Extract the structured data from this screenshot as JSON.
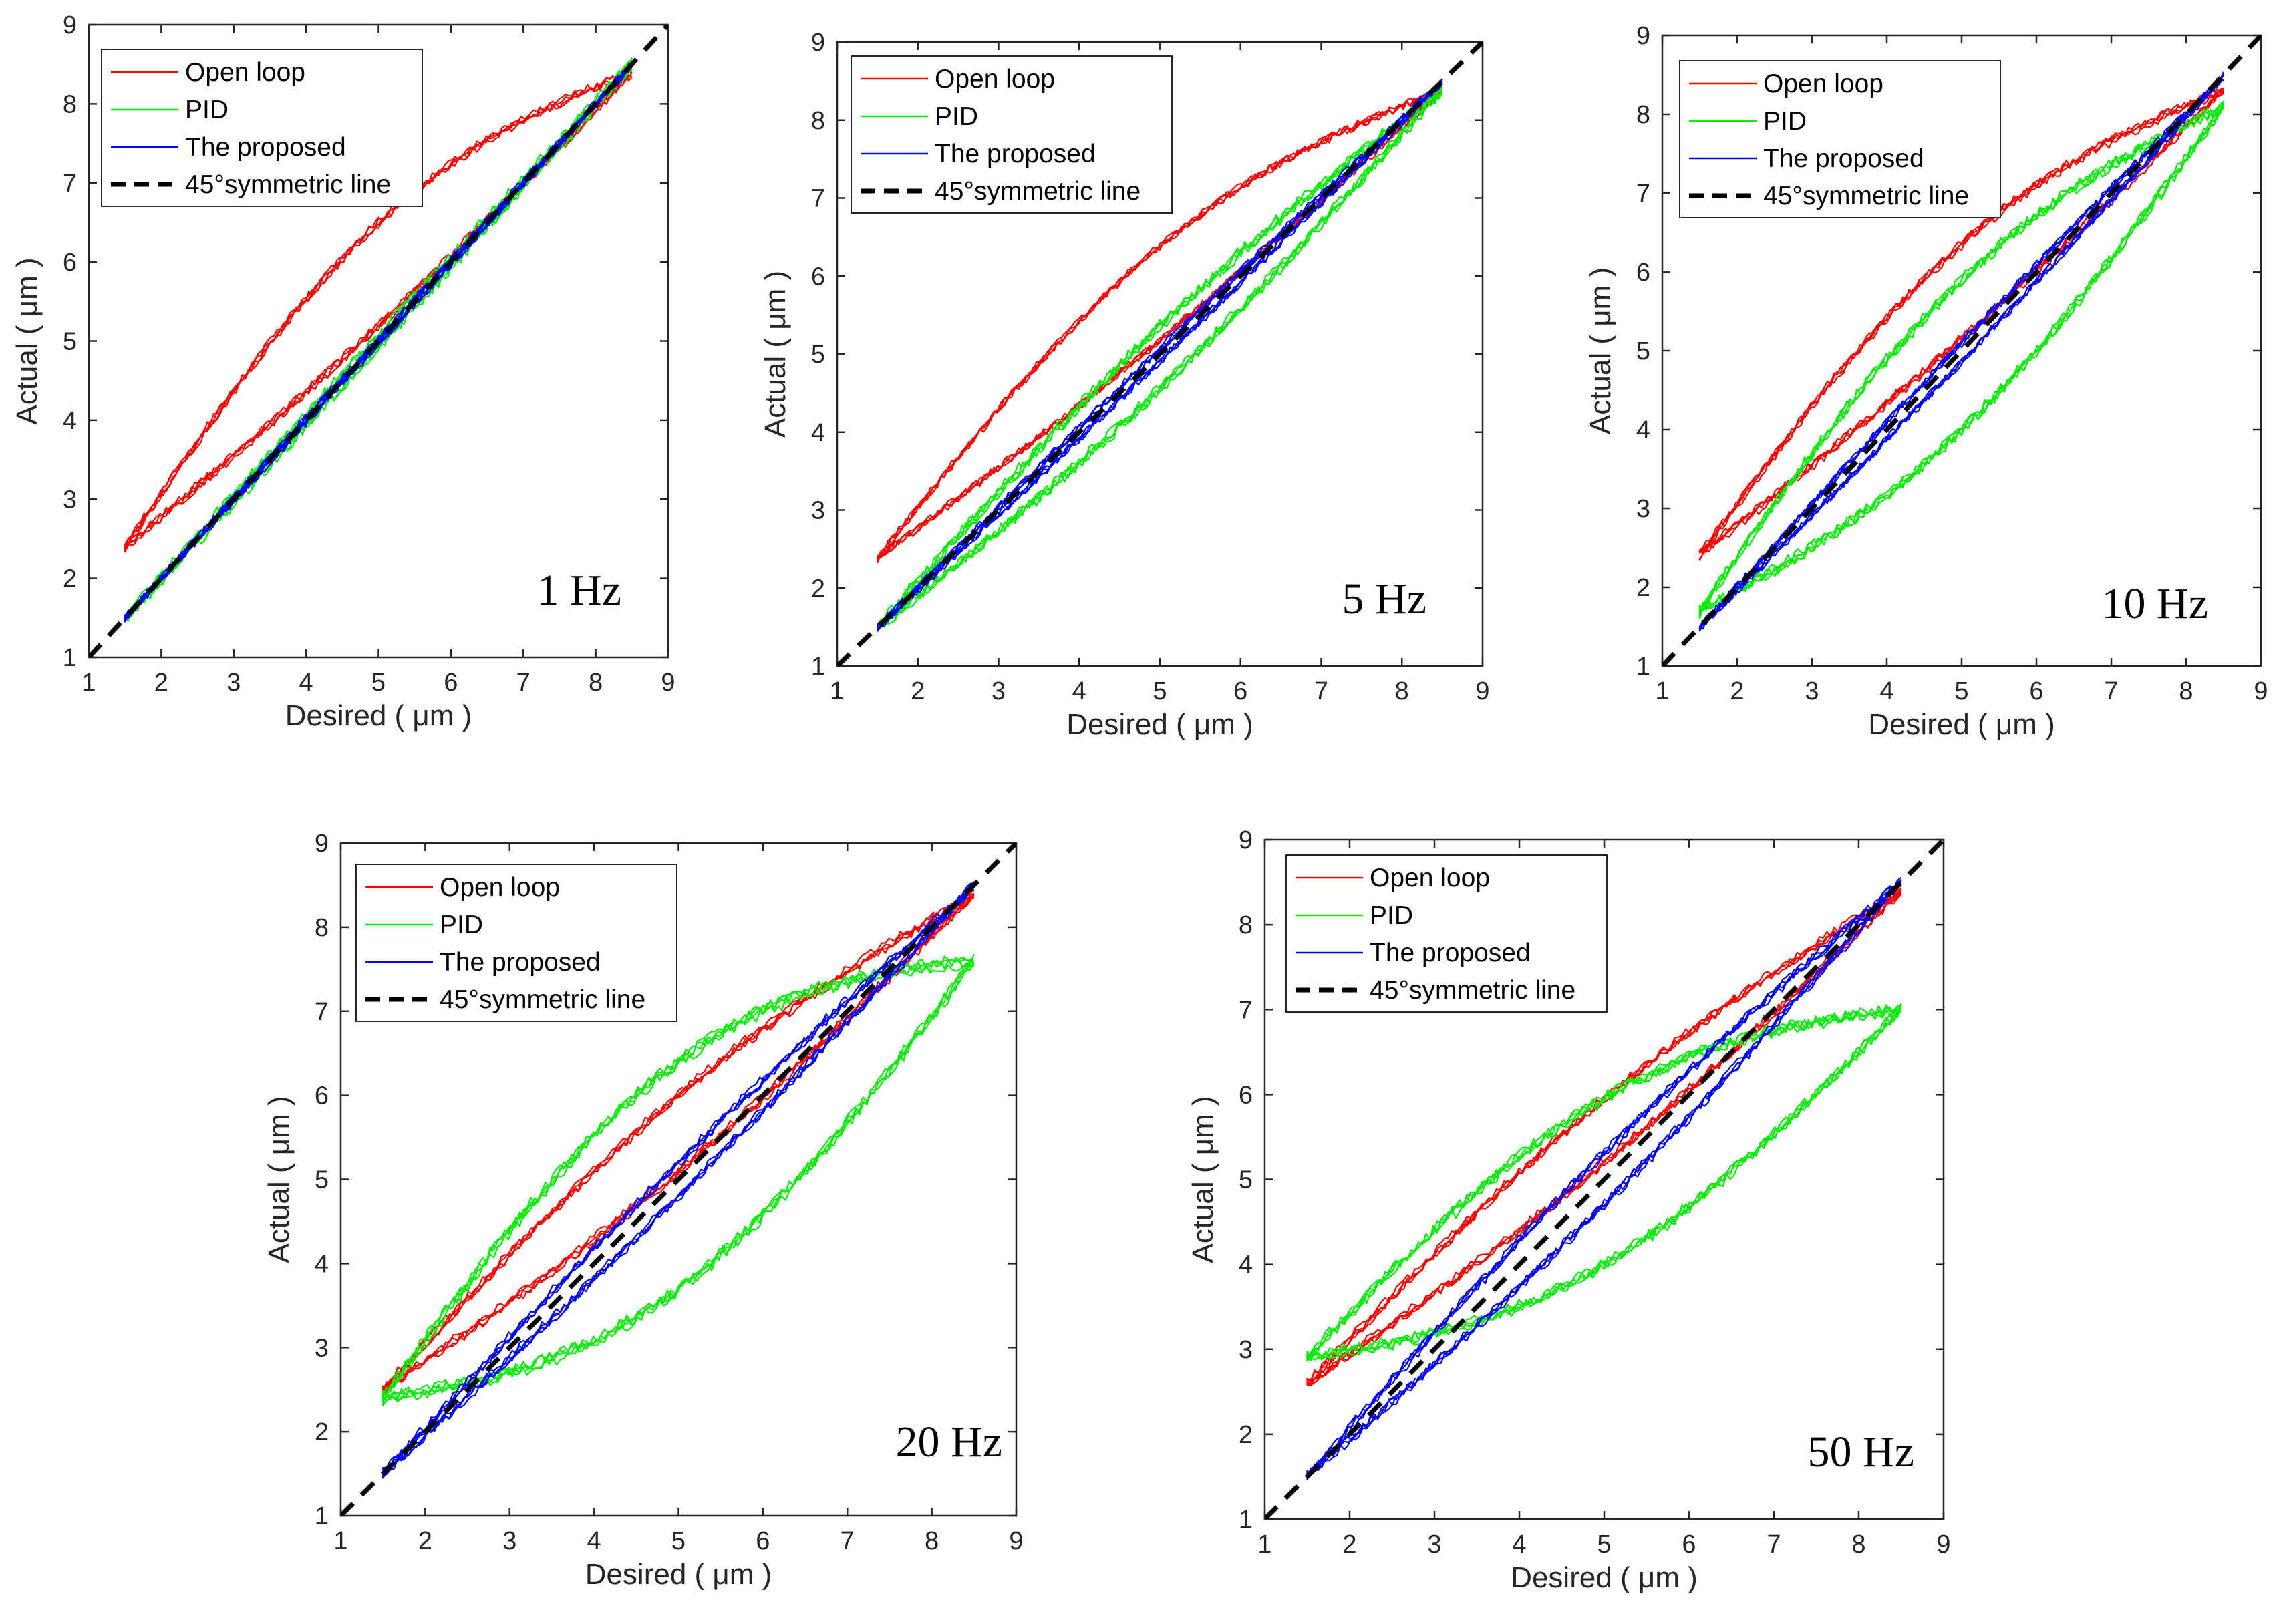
{
  "figure": {
    "colors": {
      "open_loop": "#ff0000",
      "pid": "#00ee00",
      "proposed": "#0000ff",
      "symmetric": "#000000",
      "axes": "#262626"
    }
  },
  "chart_data": [
    {
      "type": "line",
      "panel": "1 Hz",
      "annotation": "1 Hz",
      "xlabel": "Desired ( μm )",
      "ylabel": "Actual ( μm )",
      "xlim": [
        1,
        9
      ],
      "ylim": [
        1,
        9
      ],
      "xticks": [
        "1",
        "2",
        "3",
        "4",
        "5",
        "6",
        "7",
        "8",
        "9"
      ],
      "yticks": [
        "1",
        "2",
        "3",
        "4",
        "5",
        "6",
        "7",
        "8",
        "9"
      ],
      "legend_position": "top-left",
      "series": [
        {
          "name": "Open loop",
          "kind": "hysteresis",
          "x_range": [
            1.5,
            8.5
          ],
          "y_range": [
            2.4,
            8.4
          ],
          "upper_offset": 1.1,
          "lower_offset": 0.2
        },
        {
          "name": "PID",
          "kind": "hysteresis",
          "x_range": [
            1.5,
            8.5
          ],
          "y_range": [
            1.5,
            8.5
          ],
          "upper_offset": 0.06,
          "lower_offset": 0.06
        },
        {
          "name": "The proposed",
          "kind": "hysteresis",
          "x_range": [
            1.5,
            8.5
          ],
          "y_range": [
            1.5,
            8.5
          ],
          "upper_offset": 0.03,
          "lower_offset": 0.03
        },
        {
          "name": "45°symmetric line",
          "kind": "diagonal",
          "x": [
            1,
            9
          ],
          "y": [
            1,
            9
          ]
        }
      ]
    },
    {
      "type": "line",
      "panel": "5 Hz",
      "annotation": "5 Hz",
      "xlabel": "Desired ( μm )",
      "ylabel": "Actual ( μm )",
      "xlim": [
        1,
        9
      ],
      "ylim": [
        1,
        9
      ],
      "xticks": [
        "1",
        "2",
        "3",
        "4",
        "5",
        "6",
        "7",
        "8",
        "9"
      ],
      "yticks": [
        "1",
        "2",
        "3",
        "4",
        "5",
        "6",
        "7",
        "8",
        "9"
      ],
      "legend_position": "top-left",
      "series": [
        {
          "name": "Open loop",
          "kind": "hysteresis",
          "x_range": [
            1.5,
            8.5
          ],
          "y_range": [
            2.4,
            8.4
          ],
          "upper_offset": 1.0,
          "lower_offset": 0.2
        },
        {
          "name": "PID",
          "kind": "hysteresis",
          "x_range": [
            1.5,
            8.5
          ],
          "y_range": [
            1.5,
            8.4
          ],
          "upper_offset": 0.4,
          "lower_offset": 0.4
        },
        {
          "name": "The proposed",
          "kind": "hysteresis",
          "x_range": [
            1.5,
            8.5
          ],
          "y_range": [
            1.5,
            8.5
          ],
          "upper_offset": 0.08,
          "lower_offset": 0.08
        },
        {
          "name": "45°symmetric line",
          "kind": "diagonal",
          "x": [
            1,
            9
          ],
          "y": [
            1,
            9
          ]
        }
      ]
    },
    {
      "type": "line",
      "panel": "10 Hz",
      "annotation": "10 Hz",
      "xlabel": "Desired ( μm )",
      "ylabel": "Actual ( μm )",
      "xlim": [
        1,
        9
      ],
      "ylim": [
        1,
        9
      ],
      "xticks": [
        "1",
        "2",
        "3",
        "4",
        "5",
        "6",
        "7",
        "8",
        "9"
      ],
      "yticks": [
        "1",
        "2",
        "3",
        "4",
        "5",
        "6",
        "7",
        "8",
        "9"
      ],
      "legend_position": "top-left",
      "series": [
        {
          "name": "Open loop",
          "kind": "hysteresis",
          "x_range": [
            1.5,
            8.5
          ],
          "y_range": [
            2.4,
            8.3
          ],
          "upper_offset": 1.0,
          "lower_offset": 0.2
        },
        {
          "name": "PID",
          "kind": "hysteresis",
          "x_range": [
            1.5,
            8.5
          ],
          "y_range": [
            1.7,
            8.1
          ],
          "upper_offset": 1.0,
          "lower_offset": 0.9
        },
        {
          "name": "The proposed",
          "kind": "hysteresis",
          "x_range": [
            1.5,
            8.5
          ],
          "y_range": [
            1.5,
            8.5
          ],
          "upper_offset": 0.12,
          "lower_offset": 0.12
        },
        {
          "name": "45°symmetric line",
          "kind": "diagonal",
          "x": [
            1,
            9
          ],
          "y": [
            1,
            9
          ]
        }
      ]
    },
    {
      "type": "line",
      "panel": "20 Hz",
      "annotation": "20 Hz",
      "xlabel": "Desired ( μm )",
      "ylabel": "Actual ( μm )",
      "xlim": [
        1,
        9
      ],
      "ylim": [
        1,
        9
      ],
      "xticks": [
        "1",
        "2",
        "3",
        "4",
        "5",
        "6",
        "7",
        "8",
        "9"
      ],
      "yticks": [
        "1",
        "2",
        "3",
        "4",
        "5",
        "6",
        "7",
        "8",
        "9"
      ],
      "legend_position": "top-left",
      "series": [
        {
          "name": "Open loop",
          "kind": "hysteresis",
          "x_range": [
            1.5,
            8.5
          ],
          "y_range": [
            2.5,
            8.4
          ],
          "upper_offset": 0.55,
          "lower_offset": 0.35
        },
        {
          "name": "PID",
          "kind": "hysteresis",
          "x_range": [
            1.5,
            8.5
          ],
          "y_range": [
            2.4,
            7.6
          ],
          "upper_offset": 1.4,
          "lower_offset": 1.3
        },
        {
          "name": "The proposed",
          "kind": "hysteresis",
          "x_range": [
            1.5,
            8.5
          ],
          "y_range": [
            1.5,
            8.5
          ],
          "upper_offset": 0.2,
          "lower_offset": 0.2
        },
        {
          "name": "45°symmetric line",
          "kind": "diagonal",
          "x": [
            1,
            9
          ],
          "y": [
            1,
            9
          ]
        }
      ]
    },
    {
      "type": "line",
      "panel": "50 Hz",
      "annotation": "50 Hz",
      "xlabel": "Desired ( μm )",
      "ylabel": "Actual ( μm )",
      "xlim": [
        1,
        9
      ],
      "ylim": [
        1,
        9
      ],
      "xticks": [
        "1",
        "2",
        "3",
        "4",
        "5",
        "6",
        "7",
        "8",
        "9"
      ],
      "yticks": [
        "1",
        "2",
        "3",
        "4",
        "5",
        "6",
        "7",
        "8",
        "9"
      ],
      "legend_position": "top-left",
      "series": [
        {
          "name": "Open loop",
          "kind": "hysteresis",
          "x_range": [
            1.5,
            8.5
          ],
          "y_range": [
            2.6,
            8.4
          ],
          "upper_offset": 0.45,
          "lower_offset": 0.3
        },
        {
          "name": "PID",
          "kind": "hysteresis",
          "x_range": [
            1.5,
            8.5
          ],
          "y_range": [
            2.9,
            7.0
          ],
          "upper_offset": 1.0,
          "lower_offset": 0.95
        },
        {
          "name": "The proposed",
          "kind": "hysteresis",
          "x_range": [
            1.5,
            8.5
          ],
          "y_range": [
            1.5,
            8.5
          ],
          "upper_offset": 0.3,
          "lower_offset": 0.3
        },
        {
          "name": "45°symmetric line",
          "kind": "diagonal",
          "x": [
            1,
            9
          ],
          "y": [
            1,
            9
          ]
        }
      ]
    }
  ]
}
